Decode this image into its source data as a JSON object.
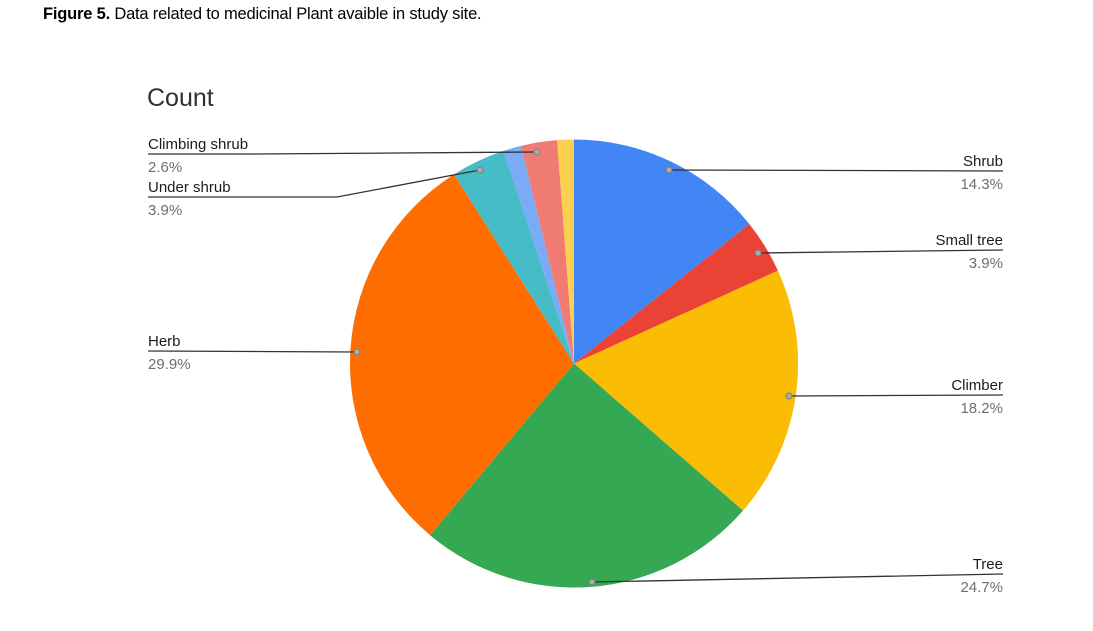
{
  "caption": {
    "label": "Figure 5.",
    "text": " Data related to medicinal Plant avaible in study site."
  },
  "chart_data": {
    "type": "pie",
    "title": "Count",
    "direction": "clockwise",
    "start_angle_deg": 0,
    "legend_position": "none (callout labels with leader lines)",
    "label_format": "category name above line, percent below",
    "slices": [
      {
        "label": "Shrub",
        "pct": 14.3,
        "color": "#4285F4"
      },
      {
        "label": "Small tree",
        "pct": 3.9,
        "color": "#EA4335"
      },
      {
        "label": "Climber",
        "pct": 18.2,
        "color": "#FBBC04"
      },
      {
        "label": "Tree",
        "pct": 24.7,
        "color": "#34A853"
      },
      {
        "label": "Herb",
        "pct": 29.9,
        "color": "#FF6D01"
      },
      {
        "label": "Under shrub",
        "pct": 3.9,
        "color": "#46BDC6"
      },
      {
        "label": "",
        "pct": 1.3,
        "color": "#7BAAF7",
        "estimated": true,
        "note": "unlabeled thin slice"
      },
      {
        "label": "Climbing shrub",
        "pct": 2.6,
        "color": "#F07B72"
      },
      {
        "label": "",
        "pct": 1.2,
        "color": "#FCD04F",
        "estimated": true,
        "note": "unlabeled thin slice"
      }
    ]
  },
  "callouts": {
    "shrub": {
      "name": "Shrub",
      "pct": "14.3%"
    },
    "small_tree": {
      "name": "Small tree",
      "pct": "3.9%"
    },
    "climber": {
      "name": "Climber",
      "pct": "18.2%"
    },
    "tree": {
      "name": "Tree",
      "pct": "24.7%"
    },
    "herb": {
      "name": "Herb",
      "pct": "29.9%"
    },
    "under_shrub": {
      "name": "Under shrub",
      "pct": "3.9%"
    },
    "climbing_shrub": {
      "name": "Climbing shrub",
      "pct": "2.6%"
    }
  },
  "colors": {
    "label_text": "#1c1c1c",
    "percent_text": "#6f6f6f",
    "leader_line": "#333333",
    "leader_dot": "#ababab",
    "background": "#ffffff"
  }
}
